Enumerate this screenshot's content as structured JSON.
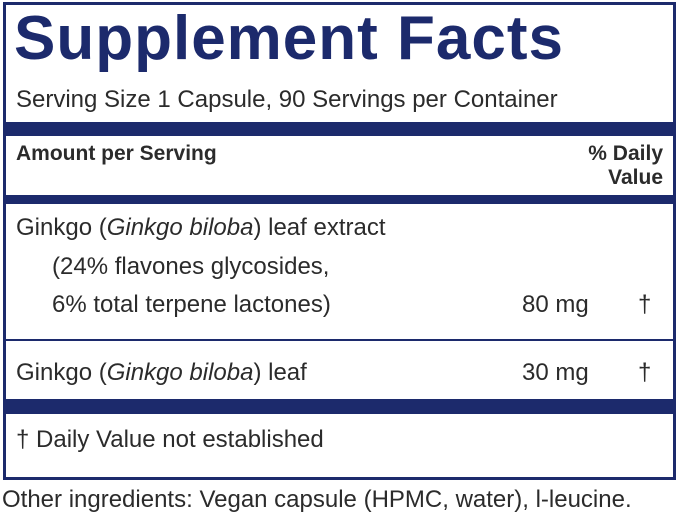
{
  "title": "Supplement Facts",
  "serving_size": "Serving Size 1 Capsule, 90 Servings per Container",
  "header": {
    "amount": "Amount per Serving",
    "daily_value": "% Daily Value"
  },
  "ingredients": [
    {
      "name": [
        "Ginkgo (",
        "Ginkgo biloba",
        ") leaf extract"
      ],
      "details": [
        "(24% flavones glycosides,",
        "6% total terpene lactones)"
      ],
      "amount": "80 mg",
      "daily_value": "†"
    },
    {
      "name": [
        "Ginkgo (",
        "Ginkgo biloba",
        ") leaf"
      ],
      "amount": "30 mg",
      "daily_value": "†"
    }
  ],
  "footnote": "† Daily Value not established",
  "other_ingredients": "Other ingredients: Vegan capsule (HPMC, water), l-leucine."
}
